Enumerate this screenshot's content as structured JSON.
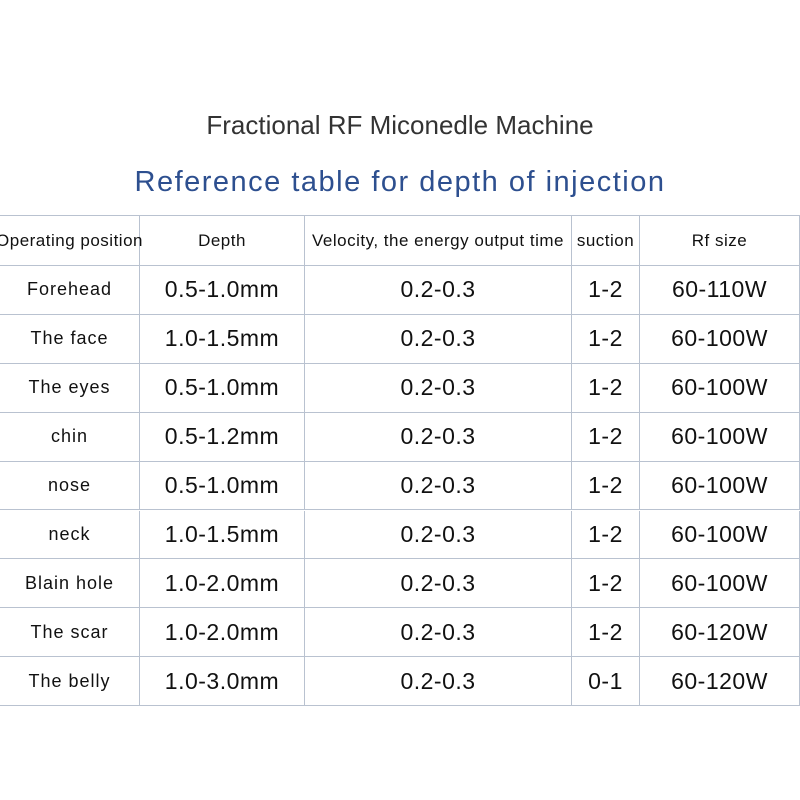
{
  "header": {
    "title": "Fractional RF Miconedle Machine",
    "subtitle": "Reference table for depth of injection"
  },
  "table": {
    "columns": [
      "Operating position",
      "Depth",
      "Velocity, the energy output time",
      "suction",
      "Rf size"
    ],
    "rows": [
      [
        "Forehead",
        "0.5-1.0mm",
        "0.2-0.3",
        "1-2",
        "60-110W"
      ],
      [
        "The face",
        "1.0-1.5mm",
        "0.2-0.3",
        "1-2",
        "60-100W"
      ],
      [
        "The eyes",
        "0.5-1.0mm",
        "0.2-0.3",
        "1-2",
        "60-100W"
      ],
      [
        "chin",
        "0.5-1.2mm",
        "0.2-0.3",
        "1-2",
        "60-100W"
      ],
      [
        "nose",
        "0.5-1.0mm",
        "0.2-0.3",
        "1-2",
        "60-100W"
      ],
      [
        "neck",
        "1.0-1.5mm",
        "0.2-0.3",
        "1-2",
        "60-100W"
      ],
      [
        "Blain hole",
        "1.0-2.0mm",
        "0.2-0.3",
        "1-2",
        "60-100W"
      ],
      [
        "The scar",
        "1.0-2.0mm",
        "0.2-0.3",
        "1-2",
        "60-120W"
      ],
      [
        "The belly",
        "1.0-3.0mm",
        "0.2-0.3",
        "0-1",
        "60-120W"
      ]
    ]
  }
}
